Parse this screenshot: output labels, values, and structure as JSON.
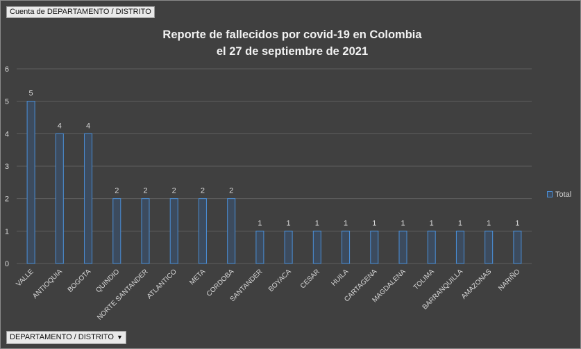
{
  "field_buttons": {
    "value_field": "Cuenta de DEPARTAMENTO / DISTRITO",
    "axis_field": "DEPARTAMENTO / DISTRITO",
    "axis_field_arrow": "▼"
  },
  "chart_data": {
    "type": "bar",
    "title_line1": "Reporte de fallecidos por covid-19 en Colombia",
    "title_line2": "el 27 de septiembre de 2021",
    "categories": [
      "VALLE",
      "ANTIOQUIA",
      "BOGOTA",
      "QUINDIO",
      "NORTE SANTANDER",
      "ATLANTICO",
      "META",
      "CORDOBA",
      "SANTANDER",
      "BOYACA",
      "CESAR",
      "HUILA",
      "CARTAGENA",
      "MAGDALENA",
      "TOLIMA",
      "BARRANQUILLA",
      "AMAZONAS",
      "NARIÑO"
    ],
    "series": [
      {
        "name": "Total",
        "values": [
          5,
          4,
          4,
          2,
          2,
          2,
          2,
          2,
          1,
          1,
          1,
          1,
          1,
          1,
          1,
          1,
          1,
          1
        ]
      }
    ],
    "ylim": [
      0,
      6
    ],
    "yticks": [
      0,
      1,
      2,
      3,
      4,
      5,
      6
    ],
    "grid": true,
    "data_labels": true,
    "legend_position": "right",
    "colors": {
      "background": "#404040",
      "bar_fill": "#3c4b5e",
      "bar_stroke": "#4a8fd8",
      "grid": "#5e5e5e",
      "text": "#d9d9d9",
      "title": "#f2f2f2"
    }
  }
}
